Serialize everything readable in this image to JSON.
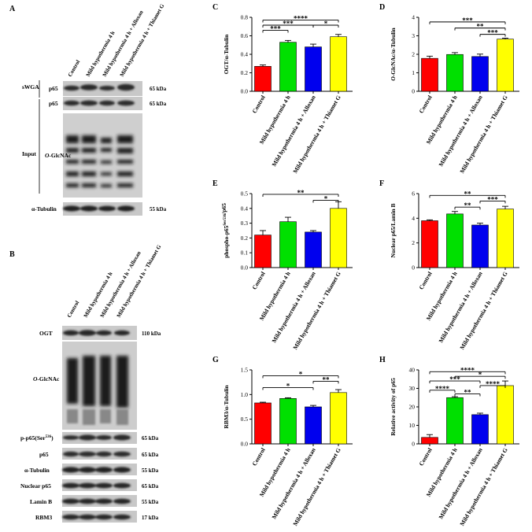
{
  "panels": {
    "A": {
      "letter": "A",
      "lanes": [
        "Control",
        "Mild hypothermia 4 h",
        "Mild hypothermia 4 h + Alloxan",
        "Mild hypothermia 4 h + Thiamet G"
      ],
      "side_labels": [
        "sWGA",
        "Input"
      ],
      "blots": [
        {
          "label": "p65",
          "kda": "65 kDa"
        },
        {
          "label": "p65",
          "kda": "65 kDa"
        },
        {
          "label_prefix": "O",
          "label_rest": "-GlcNAc",
          "kda": ""
        },
        {
          "label": "α-Tubulin",
          "kda": "55 kDa"
        }
      ]
    },
    "B": {
      "letter": "B",
      "lanes": [
        "Control",
        "Mild hypothermia 4 h",
        "Mild hypothermia 4 h + Alloxan",
        "Mild hypothermia 4 h + Thiamet G"
      ],
      "blots": [
        {
          "label": "OGT",
          "kda": "110 kDa"
        },
        {
          "label_prefix": "O",
          "label_rest": "-GlcNAc",
          "kda": ""
        },
        {
          "label": "p-p65(Ser",
          "label_sup": "536",
          "label_end": ")",
          "kda": "65 kDa"
        },
        {
          "label": "p65",
          "kda": "65 kDa"
        },
        {
          "label": "α-Tubulin",
          "kda": "55 kDa"
        },
        {
          "label": "Nuclear p65",
          "kda": "65 kDa"
        },
        {
          "label": "Lamin B",
          "kda": "55 kDa"
        },
        {
          "label": "RBM3",
          "kda": "17 kDa"
        }
      ]
    }
  },
  "colors": {
    "control": "#ff0000",
    "mh": "#00e000",
    "alloxan": "#0000ee",
    "thiamet": "#ffff00"
  },
  "chart_data": [
    {
      "letter": "C",
      "type": "bar",
      "categories": [
        "Control",
        "Mild hypothermia 4 h",
        "Mild hypothermia 4 h + Alloxan",
        "Mild hypothermia 4 h + Thiamet G"
      ],
      "values": [
        0.27,
        0.53,
        0.48,
        0.59
      ],
      "errors": [
        0.015,
        0.02,
        0.03,
        0.025
      ],
      "ylabel": "OGT/α-Tubulin",
      "ylabel_parts": [
        {
          "t": "OGT/α-Tubulin"
        }
      ],
      "ylim": [
        0,
        0.8
      ],
      "yticks": [
        "0.0",
        "0.2",
        "0.4",
        "0.6",
        "0.8"
      ],
      "yticks_vals": [
        0,
        0.2,
        0.4,
        0.6,
        0.8
      ],
      "sig": [
        {
          "from": 0,
          "to": 3,
          "y": 0.77,
          "text": "****"
        },
        {
          "from": 0,
          "to": 2,
          "y": 0.715,
          "text": "***"
        },
        {
          "from": 2,
          "to": 3,
          "y": 0.715,
          "text": "*"
        },
        {
          "from": 0,
          "to": 1,
          "y": 0.66,
          "text": "***"
        }
      ]
    },
    {
      "letter": "D",
      "type": "bar",
      "categories": [
        "Control",
        "Mild hypothermia 4 h",
        "Mild hypothermia 4 h + Alloxan",
        "Mild hypothermia 4 h + Thiamet G"
      ],
      "values": [
        1.78,
        1.99,
        1.88,
        2.82
      ],
      "errors": [
        0.12,
        0.1,
        0.13,
        0.05
      ],
      "ylabel": "O-GlcNAc/α-Tubulin",
      "ylabel_parts": [
        {
          "t": "O",
          "i": true
        },
        {
          "t": "-GlcNAc/α-Tubulin"
        }
      ],
      "ylim": [
        0,
        4
      ],
      "yticks": [
        "0",
        "1",
        "2",
        "3",
        "4"
      ],
      "yticks_vals": [
        0,
        1,
        2,
        3,
        4
      ],
      "sig": [
        {
          "from": 0,
          "to": 3,
          "y": 3.75,
          "text": "***"
        },
        {
          "from": 1,
          "to": 3,
          "y": 3.42,
          "text": "**"
        },
        {
          "from": 2,
          "to": 3,
          "y": 3.08,
          "text": "***"
        }
      ]
    },
    {
      "letter": "E",
      "type": "bar",
      "categories": [
        "Control",
        "Mild hypothermia 4 h",
        "Mild hypothermia 4 h + Alloxan",
        "Mild hypothermia 4 h + Thiamet G"
      ],
      "values": [
        0.22,
        0.31,
        0.24,
        0.4
      ],
      "errors": [
        0.03,
        0.03,
        0.01,
        0.045
      ],
      "ylabel": "phospho-p65Ser536/p65",
      "ylabel_parts": [
        {
          "t": "phospho-p65"
        },
        {
          "t": "Ser536",
          "sup": true
        },
        {
          "t": "/p65"
        }
      ],
      "ylim": [
        0,
        0.5
      ],
      "yticks": [
        "0.0",
        "0.1",
        "0.2",
        "0.3",
        "0.4",
        "0.5"
      ],
      "yticks_vals": [
        0,
        0.1,
        0.2,
        0.3,
        0.4,
        0.5
      ],
      "sig": [
        {
          "from": 0,
          "to": 3,
          "y": 0.495,
          "text": "**"
        },
        {
          "from": 2,
          "to": 3,
          "y": 0.455,
          "text": "*"
        }
      ]
    },
    {
      "letter": "F",
      "type": "bar",
      "categories": [
        "Control",
        "Mild hypothermia 4 h",
        "Mild hypothermia 4 h + Alloxan",
        "Mild hypothermia 4 h + Thiamet G"
      ],
      "values": [
        3.8,
        4.35,
        3.45,
        4.75
      ],
      "errors": [
        0.07,
        0.2,
        0.15,
        0.22
      ],
      "ylabel": "Nuclear p65/Lamin B",
      "ylabel_parts": [
        {
          "t": "Nuclear p65/Lamin B"
        }
      ],
      "ylim": [
        0,
        6
      ],
      "yticks": [
        "0",
        "2",
        "4",
        "6"
      ],
      "yticks_vals": [
        0,
        2,
        4,
        6
      ],
      "sig": [
        {
          "from": 0,
          "to": 3,
          "y": 5.85,
          "text": "**"
        },
        {
          "from": 2,
          "to": 3,
          "y": 5.4,
          "text": "***"
        },
        {
          "from": 1,
          "to": 2,
          "y": 4.9,
          "text": "**"
        }
      ]
    },
    {
      "letter": "G",
      "type": "bar",
      "categories": [
        "Control",
        "Mild hypothermia 4 h",
        "Mild hypothermia 4 h + Alloxan",
        "Mild hypothermia 4 h + Thiamet G"
      ],
      "values": [
        0.83,
        0.92,
        0.75,
        1.04
      ],
      "errors": [
        0.015,
        0.015,
        0.03,
        0.06
      ],
      "ylabel": "RBM3/α-Tubulin",
      "ylabel_parts": [
        {
          "t": "RBM3/α-Tubulin"
        }
      ],
      "ylim": [
        0,
        1.5
      ],
      "yticks": [
        "0.0",
        "0.5",
        "1.0",
        "1.5"
      ],
      "yticks_vals": [
        0,
        0.5,
        1.0,
        1.5
      ],
      "sig": [
        {
          "from": 0,
          "to": 3,
          "y": 1.38,
          "text": "*"
        },
        {
          "from": 2,
          "to": 3,
          "y": 1.27,
          "text": "**"
        },
        {
          "from": 0,
          "to": 2,
          "y": 1.14,
          "text": "*"
        }
      ]
    },
    {
      "letter": "H",
      "type": "bar",
      "categories": [
        "Control",
        "Mild hypothermia 4 h",
        "Mild hypothermia 4 h + Alloxan",
        "Mild hypothermia 4 h + Thiamet G"
      ],
      "values": [
        3.5,
        25.0,
        15.8,
        31.5
      ],
      "errors": [
        1.5,
        0.5,
        0.8,
        2.5
      ],
      "ylabel": "Relative activity of p65",
      "ylabel_parts": [
        {
          "t": "Relative activity of p65"
        }
      ],
      "ylim": [
        0,
        40
      ],
      "yticks": [
        "0",
        "10",
        "20",
        "30",
        "40"
      ],
      "yticks_vals": [
        0,
        10,
        20,
        30,
        40
      ],
      "sig": [
        {
          "from": 0,
          "to": 3,
          "y": 39,
          "text": "****"
        },
        {
          "from": 1,
          "to": 3,
          "y": 36.5,
          "text": "*"
        },
        {
          "from": 0,
          "to": 2,
          "y": 34,
          "text": "***"
        },
        {
          "from": 2,
          "to": 3,
          "y": 31.5,
          "text": "****"
        },
        {
          "from": 0,
          "to": 1,
          "y": 29,
          "text": "****"
        },
        {
          "from": 1,
          "to": 2,
          "y": 27,
          "text": "**"
        }
      ]
    }
  ]
}
